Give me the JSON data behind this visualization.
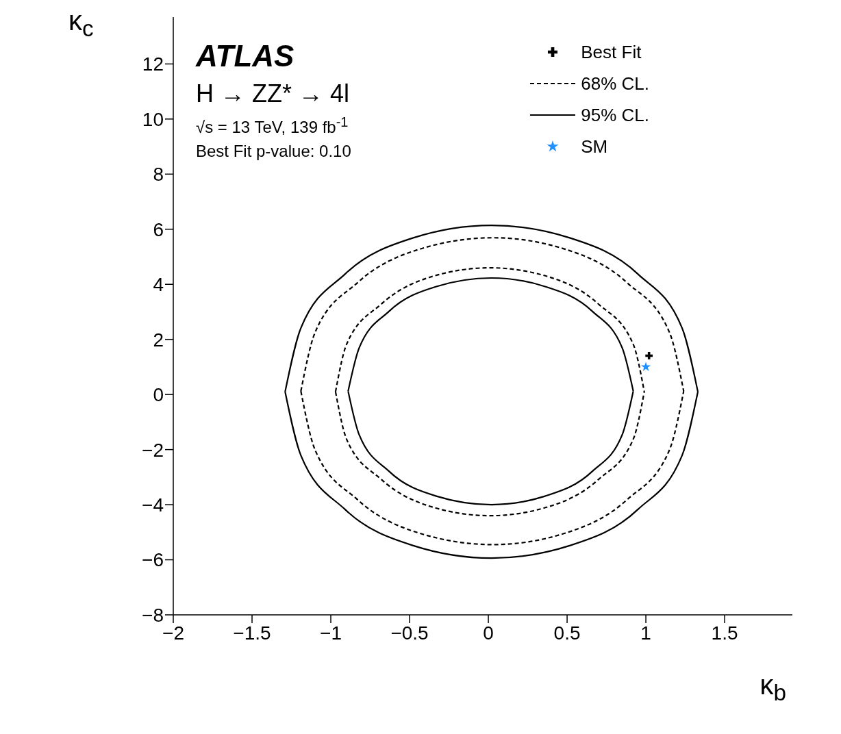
{
  "chart_data": {
    "type": "line",
    "xlabel": "κ$_{b}$",
    "ylabel": "κ$_{c}$",
    "annotations": [
      "ATLAS",
      "H → ZZ* → 4l",
      "√s = 13 TeV, 139 fb$^{-1}$",
      "Best Fit p-value: 0.10"
    ],
    "xlim": [
      -2,
      1.93
    ],
    "ylim": [
      -8,
      13.7
    ],
    "xticks": [
      {
        "value": -2,
        "label": "−2"
      },
      {
        "value": -1.5,
        "label": "−1.5"
      },
      {
        "value": -1,
        "label": "−1"
      },
      {
        "value": -0.5,
        "label": "−0.5"
      },
      0,
      0.5,
      1,
      1.5
    ],
    "yticks": [
      {
        "value": -8,
        "label": "−8"
      },
      {
        "value": -6,
        "label": "−6"
      },
      {
        "value": -4,
        "label": "−4"
      },
      {
        "value": -2,
        "label": "−2"
      },
      0,
      2,
      4,
      6,
      8,
      10,
      12
    ],
    "grid": false,
    "legend": "top right",
    "series": [
      {
        "name": "Best Fit",
        "type": "scatter",
        "marker": "cross",
        "color": "#000000",
        "x": [
          1.02
        ],
        "values": [
          1.41
        ]
      },
      {
        "name": "68% CL.",
        "type": "line",
        "line_style": "dashed",
        "color": "#000000",
        "x": [
          -1.19,
          -1.1,
          -0.83,
          -0.44,
          0.03,
          0.49,
          0.88,
          1.15,
          1.24,
          null,
          -1.19,
          -1.1,
          -0.83,
          -0.44,
          0.03,
          0.49,
          0.88,
          1.15,
          1.24,
          null,
          -0.97,
          -0.9,
          -0.68,
          -0.37,
          0.01,
          0.39,
          0.7,
          0.92,
          0.99,
          null,
          -0.97,
          -0.9,
          -0.68,
          -0.37,
          0.01,
          0.39,
          0.7,
          0.92,
          0.99
        ],
        "values": [
          0.12,
          2.25,
          4.06,
          5.27,
          5.69,
          5.27,
          4.06,
          2.25,
          0.12,
          null,
          0.12,
          -2.01,
          -3.82,
          -5.03,
          -5.45,
          -5.03,
          -3.82,
          -2.01,
          0.12,
          null,
          0.1,
          1.82,
          3.28,
          4.26,
          4.6,
          4.26,
          3.28,
          1.82,
          0.1,
          null,
          0.1,
          -1.62,
          -3.08,
          -4.06,
          -4.4,
          -4.06,
          -3.08,
          -1.62,
          0.1
        ]
      },
      {
        "name": "95% CL.",
        "type": "line",
        "line_style": "solid",
        "color": "#000000",
        "x": [
          -1.29,
          -1.19,
          -0.91,
          -0.48,
          0.02,
          0.52,
          0.95,
          1.23,
          1.33,
          null,
          -1.29,
          -1.19,
          -0.91,
          -0.48,
          0.02,
          0.52,
          0.95,
          1.23,
          1.33,
          null,
          -0.89,
          -0.82,
          -0.63,
          -0.33,
          0.02,
          0.36,
          0.66,
          0.85,
          0.92,
          null,
          -0.89,
          -0.82,
          -0.63,
          -0.33,
          0.02,
          0.36,
          0.66,
          0.85,
          0.92
        ],
        "values": [
          0.1,
          2.41,
          4.37,
          5.68,
          6.14,
          5.68,
          4.37,
          2.41,
          0.1,
          null,
          0.1,
          -2.21,
          -4.17,
          -5.48,
          -5.94,
          -5.48,
          -4.17,
          -2.21,
          0.1,
          null,
          0.12,
          1.69,
          3.02,
          3.92,
          4.23,
          3.92,
          3.02,
          1.69,
          0.12,
          null,
          0.12,
          -1.46,
          -2.79,
          -3.69,
          -4.0,
          -3.69,
          -2.79,
          -1.46,
          0.12
        ]
      },
      {
        "name": "SM",
        "type": "scatter",
        "marker": "star",
        "color": "#1e90ff",
        "x": [
          1
        ],
        "values": [
          1
        ]
      }
    ]
  }
}
